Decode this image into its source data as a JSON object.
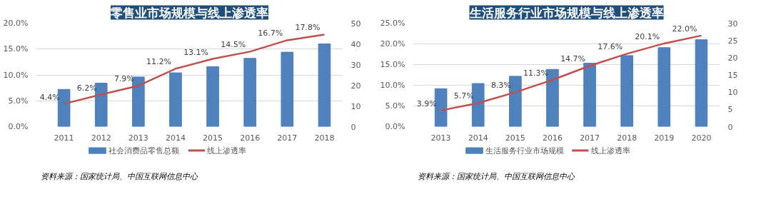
{
  "chart_data": [
    {
      "type": "bar",
      "title": "零售业市场规模与线上渗透率",
      "categories": [
        "2011",
        "2012",
        "2013",
        "2014",
        "2015",
        "2016",
        "2017",
        "2018"
      ],
      "series": [
        {
          "name": "社会消费品零售总额",
          "axis": "y2",
          "color": "#4f81bd",
          "values": [
            18,
            21,
            24,
            26,
            29,
            33,
            36,
            40
          ]
        },
        {
          "name": "线上渗透率",
          "type": "line",
          "color": "#c0504d",
          "values": [
            4.4,
            6.2,
            7.9,
            11.2,
            13.1,
            14.5,
            16.7,
            17.8
          ],
          "value_labels": [
            "4.4%",
            "6.2%",
            "7.9%",
            "11.2%",
            "13.1%",
            "14.5%",
            "16.7%",
            "17.8%"
          ]
        }
      ],
      "ylim": [
        0,
        20
      ],
      "yticks": [
        {
          "value": 0,
          "label": "0.0%"
        },
        {
          "value": 5,
          "label": "5.0%"
        },
        {
          "value": 10,
          "label": "10.0%"
        },
        {
          "value": 15,
          "label": "15.0%"
        },
        {
          "value": 20,
          "label": "20.0%"
        }
      ],
      "y2lim": [
        0,
        50
      ],
      "y2ticks": [
        0,
        10,
        20,
        30,
        40,
        50
      ],
      "grid": "y",
      "legend": "bottom",
      "marker": "none",
      "line_style": "solid",
      "annotations": [
        "资料来源：国家统计局、中国互联网信息中心"
      ]
    },
    {
      "type": "bar",
      "title": "生活服务行业市场规模与线上渗透率",
      "categories": [
        "2013",
        "2014",
        "2015",
        "2016",
        "2017",
        "2018",
        "2019",
        "2020"
      ],
      "series": [
        {
          "name": "生活服务行业市场规模",
          "axis": "y2",
          "color": "#4f81bd",
          "values": [
            11.0,
            12.5,
            14.6,
            16.6,
            18.4,
            20.6,
            22.9,
            25.2
          ]
        },
        {
          "name": "线上渗透率",
          "type": "line",
          "color": "#c0504d",
          "values": [
            3.9,
            5.7,
            8.3,
            11.3,
            14.7,
            17.6,
            20.1,
            22.0
          ],
          "value_labels": [
            "3.9%",
            "5.7%",
            "8.3%",
            "11.3%",
            "14.7%",
            "17.6%",
            "20.1%",
            "22.0%"
          ]
        }
      ],
      "ylim": [
        0,
        25
      ],
      "yticks": [
        {
          "value": 0,
          "label": "0.0%"
        },
        {
          "value": 5,
          "label": "5.0%"
        },
        {
          "value": 10,
          "label": "10.0%"
        },
        {
          "value": 15,
          "label": "15.0%"
        },
        {
          "value": 20,
          "label": "20.0%"
        },
        {
          "value": 25,
          "label": "25.0%"
        }
      ],
      "y2lim": [
        0,
        30
      ],
      "y2ticks": [
        0,
        5,
        10,
        15,
        20,
        25,
        30
      ],
      "grid": "y",
      "legend": "bottom",
      "marker": "none",
      "line_style": "solid",
      "annotations": [
        "资料来源：国家统计局、中国互联网信息中心"
      ]
    }
  ]
}
